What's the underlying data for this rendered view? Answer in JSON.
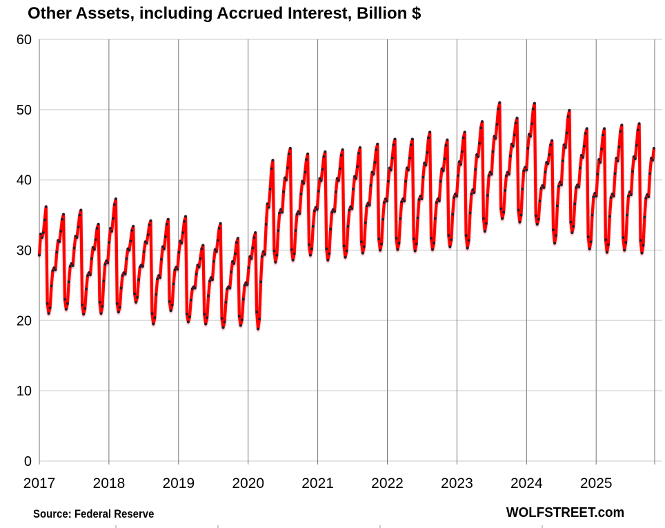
{
  "chart": {
    "title": "Other Assets, including Accrued Interest, Billion $",
    "source": "Source: Federal Reserve",
    "watermark": "WOLFSTREET.com"
  },
  "chart_data": {
    "type": "line",
    "title": "Other Assets, including Accrued Interest, Billion $",
    "source": "Source: Federal Reserve",
    "watermark": "WOLFSTREET.com",
    "xlabel": "",
    "ylabel": "",
    "x_tick_labels": [
      "2017",
      "2018",
      "2019",
      "2020",
      "2021",
      "2022",
      "2023",
      "2024",
      "2025"
    ],
    "x_range_years": [
      2017.0,
      2025.84
    ],
    "ylim": [
      0,
      60
    ],
    "yticks": [
      0,
      10,
      20,
      30,
      40,
      50,
      60
    ],
    "grid": true,
    "legend": false,
    "line_color": "#ff0000",
    "marker_color": "#1c2130",
    "h_grid_color": "#dcdcdc",
    "v_grid_color": "#757575",
    "quarterly_peaks": [
      36.2,
      35.1,
      35.7,
      33.7,
      37.3,
      33.4,
      34.2,
      34.4,
      34.8,
      30.7,
      33.8,
      31.7,
      32.5,
      42.8,
      44.5,
      43.7,
      44.0,
      44.3,
      44.6,
      45.1,
      45.8,
      45.8,
      46.8,
      45.7,
      46.8,
      48.3,
      51.0,
      48.8,
      50.9,
      45.6,
      49.9,
      47.3,
      47.3,
      47.8,
      48.0
    ],
    "quarterly_troughs": [
      21.0,
      21.6,
      20.9,
      21.0,
      21.2,
      22.6,
      19.5,
      21.4,
      19.8,
      19.5,
      19.0,
      19.3,
      18.8,
      28.3,
      28.6,
      29.3,
      28.6,
      29.0,
      29.6,
      30.0,
      30.1,
      29.9,
      30.1,
      30.5,
      30.3,
      32.7,
      34.5,
      34.0,
      33.7,
      31.0,
      32.5,
      30.2,
      29.7,
      30.0,
      29.6
    ],
    "series": [
      {
        "name": "Other assets, including accrued interest ($ billions, weekly)",
        "values": [
          29.3,
          32.3,
          31.8,
          32.5,
          34.3,
          36.2,
          22.4,
          21.0,
          21.8,
          24.9,
          27.1,
          27.5,
          27.2,
          29.7,
          31.4,
          31.2,
          32.7,
          34.4,
          35.1,
          23.0,
          21.6,
          22.4,
          25.5,
          27.7,
          28.1,
          27.8,
          30.3,
          32.0,
          31.8,
          33.3,
          35.0,
          35.7,
          22.2,
          20.9,
          21.7,
          24.5,
          26.4,
          26.8,
          26.5,
          28.8,
          30.4,
          30.1,
          31.5,
          33.1,
          33.7,
          22.6,
          21.0,
          22.0,
          25.6,
          28.0,
          28.5,
          28.2,
          31.1,
          33.1,
          32.7,
          34.5,
          36.5,
          37.3,
          22.4,
          21.2,
          21.9,
          24.6,
          26.4,
          26.8,
          26.6,
          28.8,
          30.2,
          30.0,
          31.3,
          32.8,
          33.4,
          23.8,
          22.6,
          23.3,
          25.8,
          27.6,
          27.9,
          27.7,
          29.8,
          31.2,
          31.0,
          32.2,
          33.6,
          34.2,
          21.0,
          19.5,
          20.4,
          23.7,
          25.9,
          26.4,
          26.1,
          28.7,
          30.5,
          30.2,
          31.9,
          33.7,
          34.4,
          22.7,
          21.4,
          22.2,
          25.2,
          27.2,
          27.6,
          27.3,
          29.7,
          31.3,
          31.0,
          32.5,
          34.1,
          34.8,
          20.9,
          19.8,
          20.5,
          22.9,
          24.5,
          24.8,
          24.6,
          26.6,
          27.9,
          27.6,
          28.8,
          30.2,
          30.7,
          20.9,
          19.5,
          20.4,
          23.5,
          25.6,
          26.1,
          25.8,
          28.4,
          30.1,
          29.8,
          31.4,
          33.1,
          33.8,
          20.3,
          19.0,
          19.8,
          22.6,
          24.5,
          24.8,
          24.6,
          26.9,
          28.4,
          28.1,
          29.5,
          31.1,
          31.7,
          20.6,
          19.3,
          20.1,
          23.0,
          25.0,
          25.4,
          25.1,
          27.5,
          29.1,
          28.8,
          30.3,
          31.8,
          32.5,
          21.2,
          18.8,
          20.2,
          25.5,
          29.1,
          29.8,
          29.4,
          33.7,
          36.6,
          36.1,
          38.7,
          41.6,
          42.8,
          29.9,
          28.3,
          29.3,
          32.8,
          35.3,
          35.8,
          35.4,
          38.3,
          40.3,
          40.0,
          41.7,
          43.7,
          44.5,
          30.1,
          28.6,
          29.5,
          32.8,
          35.1,
          35.5,
          35.2,
          38.0,
          39.8,
          39.5,
          41.1,
          42.9,
          43.7,
          30.8,
          29.3,
          30.2,
          33.4,
          35.6,
          36.1,
          35.8,
          38.4,
          40.2,
          39.9,
          41.5,
          43.3,
          44.0,
          30.2,
          28.6,
          29.5,
          33.0,
          35.4,
          35.8,
          35.5,
          38.3,
          40.2,
          39.9,
          41.6,
          43.5,
          44.3,
          30.6,
          29.0,
          29.9,
          33.4,
          35.7,
          36.2,
          35.9,
          38.7,
          40.5,
          40.2,
          41.9,
          43.8,
          44.6,
          31.2,
          29.6,
          30.5,
          33.9,
          36.3,
          36.7,
          36.4,
          39.2,
          41.1,
          40.8,
          42.5,
          44.3,
          45.1,
          31.6,
          30.0,
          30.9,
          34.4,
          36.8,
          37.3,
          37.0,
          39.8,
          41.7,
          41.4,
          43.1,
          45.0,
          45.8,
          31.7,
          30.1,
          31.0,
          34.5,
          36.9,
          37.3,
          37.0,
          39.8,
          41.7,
          41.4,
          43.1,
          45.0,
          45.8,
          31.6,
          29.9,
          30.9,
          34.6,
          37.2,
          37.7,
          37.3,
          40.4,
          42.4,
          42.1,
          43.9,
          46.0,
          46.8,
          31.7,
          30.1,
          31.0,
          34.5,
          36.8,
          37.3,
          37.0,
          39.8,
          41.6,
          41.3,
          43.0,
          44.9,
          45.7,
          32.1,
          30.5,
          31.5,
          35.1,
          37.5,
          38.0,
          37.7,
          40.6,
          42.6,
          42.2,
          44.0,
          46.0,
          46.8,
          32.1,
          30.3,
          31.4,
          35.3,
          38.0,
          38.6,
          38.2,
          41.5,
          43.6,
          43.3,
          45.2,
          47.4,
          48.3,
          34.5,
          32.7,
          33.8,
          37.8,
          40.6,
          41.1,
          40.8,
          44.0,
          46.2,
          45.9,
          47.9,
          50.1,
          51.0,
          35.9,
          34.5,
          35.4,
          38.5,
          40.6,
          41.1,
          40.8,
          43.4,
          45.1,
          44.8,
          46.4,
          48.1,
          48.8,
          35.7,
          34.0,
          35.0,
          38.7,
          41.3,
          41.8,
          41.4,
          44.5,
          46.5,
          46.2,
          48.0,
          50.1,
          50.9,
          34.9,
          33.7,
          34.4,
          37.0,
          38.8,
          39.2,
          38.9,
          41.1,
          42.5,
          42.3,
          43.6,
          45.0,
          45.6,
          32.9,
          31.0,
          32.1,
          36.3,
          39.1,
          39.7,
          39.3,
          42.7,
          45.0,
          44.6,
          46.7,
          49.0,
          49.9,
          34.0,
          32.5,
          33.4,
          36.6,
          38.9,
          39.3,
          39.0,
          41.7,
          43.5,
          43.2,
          44.8,
          46.6,
          47.3,
          31.9,
          30.2,
          31.2,
          35.0,
          37.6,
          38.1,
          37.7,
          40.8,
          42.9,
          42.5,
          44.4,
          46.4,
          47.3,
          31.5,
          29.7,
          30.8,
          34.8,
          37.5,
          38.0,
          37.7,
          40.9,
          43.1,
          42.7,
          44.7,
          46.9,
          47.8,
          31.8,
          30.0,
          31.1,
          35.0,
          37.7,
          38.3,
          37.9,
          41.2,
          43.3,
          43.0,
          44.9,
          47.1,
          48.0,
          31.4,
          29.6,
          30.7,
          34.7,
          37.4,
          37.9,
          37.6,
          40.9,
          43.1,
          42.8,
          44.5
        ]
      }
    ]
  }
}
